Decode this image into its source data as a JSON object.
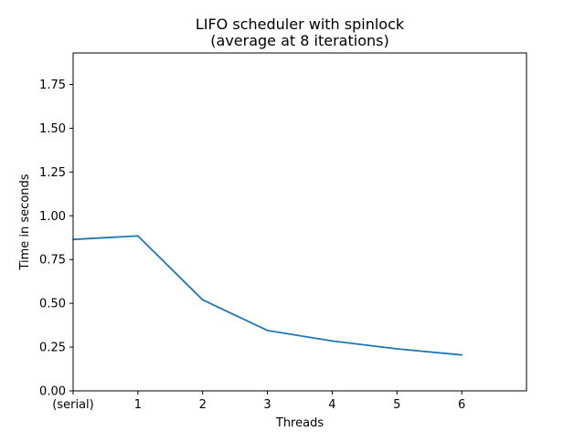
{
  "chart_data": {
    "type": "line",
    "title_lines": [
      "LIFO scheduler with spinlock",
      "(average at 8 iterations)"
    ],
    "xlabel": "Threads",
    "ylabel": "Time in seconds",
    "x_tick_labels": [
      "(serial)",
      "1",
      "2",
      "3",
      "4",
      "5",
      "6"
    ],
    "xlim": [
      0,
      7
    ],
    "ylim": [
      0,
      1.93
    ],
    "y_ticks": [
      0.0,
      0.25,
      0.5,
      0.75,
      1.0,
      1.25,
      1.5,
      1.75
    ],
    "y_tick_labels": [
      "0.00",
      "0.25",
      "0.50",
      "0.75",
      "1.00",
      "1.25",
      "1.50",
      "1.75"
    ],
    "grid": false,
    "series": [
      {
        "x": [
          0,
          1,
          2,
          3,
          4,
          5,
          6
        ],
        "values": [
          0.865,
          0.885,
          0.52,
          0.345,
          0.285,
          0.24,
          0.205
        ],
        "color": "#1f77b4"
      }
    ]
  }
}
